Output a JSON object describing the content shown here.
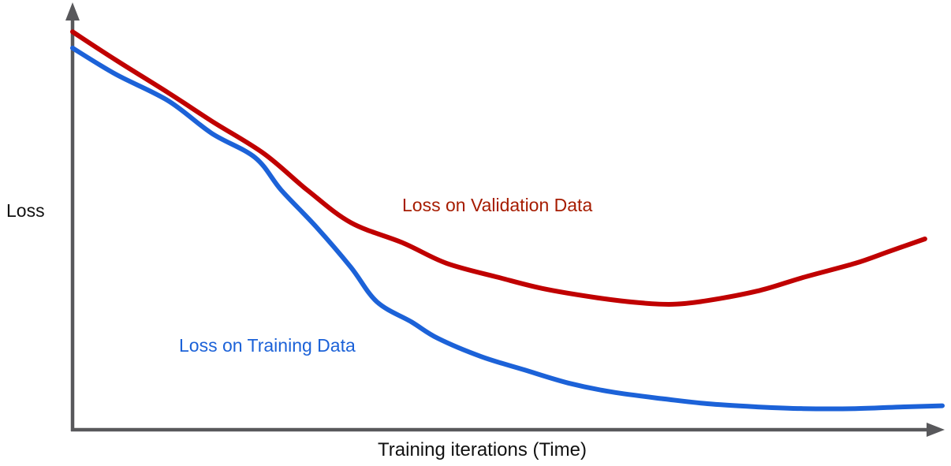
{
  "chart_data": {
    "type": "line",
    "title": "",
    "xlabel": "Training iterations (Time)",
    "ylabel": "Loss",
    "x_range": [
      0,
      100
    ],
    "y_range": [
      0,
      1
    ],
    "grid": false,
    "legend_position": "inline-annotations",
    "tick_labels": "none",
    "colors": {
      "axis": "#58585b",
      "background": "#ffffff",
      "text": "#111111"
    },
    "series": [
      {
        "id": "validation",
        "name": "Loss on Validation Data",
        "color": "#c00000",
        "label_color": "#a61c00",
        "x": [
          0,
          5,
          11,
          16,
          22,
          27,
          32,
          38,
          43,
          49,
          54,
          60,
          65,
          69,
          73,
          79,
          84,
          90,
          94,
          98
        ],
        "y": [
          0.98,
          0.91,
          0.83,
          0.76,
          0.68,
          0.59,
          0.51,
          0.46,
          0.41,
          0.375,
          0.348,
          0.326,
          0.313,
          0.309,
          0.318,
          0.343,
          0.375,
          0.41,
          0.44,
          0.47
        ]
      },
      {
        "id": "training",
        "name": "Loss on Training Data",
        "color": "#1c62d8",
        "label_color": "#1c62d8",
        "x": [
          0,
          5,
          11,
          16,
          21,
          24,
          28,
          32,
          35,
          39,
          42,
          47,
          52,
          57,
          62,
          68,
          73,
          79,
          84,
          90,
          95,
          100
        ],
        "y": [
          0.94,
          0.875,
          0.81,
          0.73,
          0.67,
          0.59,
          0.5,
          0.4,
          0.315,
          0.265,
          0.225,
          0.18,
          0.147,
          0.115,
          0.093,
          0.076,
          0.064,
          0.056,
          0.052,
          0.052,
          0.056,
          0.059
        ]
      }
    ]
  }
}
